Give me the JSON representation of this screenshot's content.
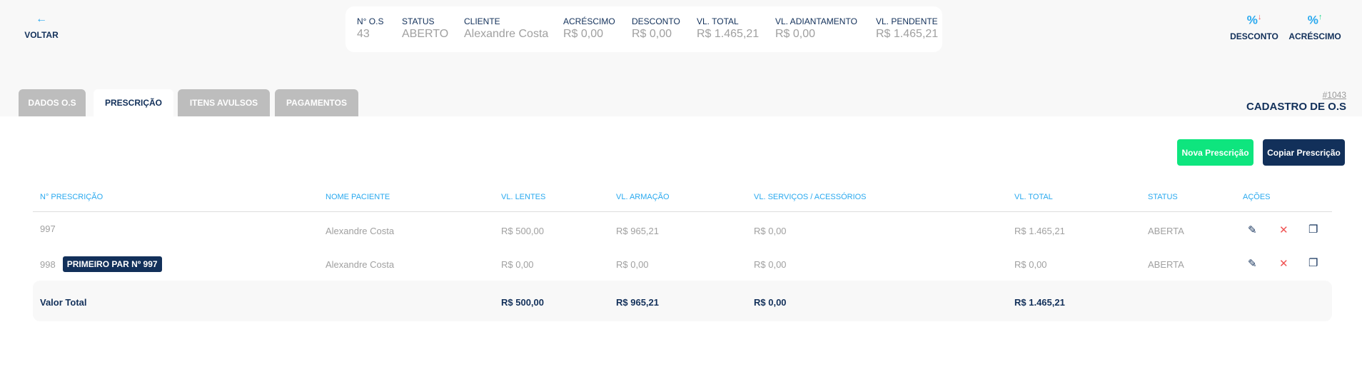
{
  "header": {
    "back_label": "VOLTAR",
    "back_icon": "arrow-left-icon",
    "info": [
      {
        "label": "N° O.S",
        "value": "43"
      },
      {
        "label": "STATUS",
        "value": "ABERTO"
      },
      {
        "label": "CLIENTE",
        "value": "Alexandre Costa"
      },
      {
        "label": "ACRÉSCIMO",
        "value": "R$ 0,00"
      },
      {
        "label": "DESCONTO",
        "value": "R$ 0,00"
      },
      {
        "label": "VL. TOTAL",
        "value": "R$ 1.465,21"
      },
      {
        "label": "VL. ADIANTAMENTO",
        "value": "R$ 0,00"
      },
      {
        "label": "VL. PENDENTE",
        "value": "R$ 1.465,21"
      }
    ],
    "actions": [
      {
        "label": "DESCONTO",
        "icon": "percent-down-icon",
        "arrow": "↓",
        "arrow_color": "#f05454"
      },
      {
        "label": "ACRÉSCIMO",
        "icon": "percent-up-icon",
        "arrow": "↑",
        "arrow_color": "#19d98b"
      }
    ]
  },
  "tabs": [
    {
      "label": "DADOS O.S"
    },
    {
      "label": "PRESCRIÇÃO",
      "active": true
    },
    {
      "label": "ITENS AVULSOS"
    },
    {
      "label": "PAGAMENTOS"
    }
  ],
  "page": {
    "code": "#1043",
    "title": "CADASTRO DE O.S"
  },
  "buttons": {
    "new": "Nova Prescrição",
    "copy": "Copiar Prescrição",
    "new_color": "#0ee57e",
    "copy_color": "#12305a"
  },
  "table": {
    "headers": [
      "N° PRESCRIÇÃO",
      "NOME PACIENTE",
      "VL. LENTES",
      "VL. ARMAÇÃO",
      "VL. SERVIÇOS / ACESSÓRIOS",
      "VL. TOTAL",
      "STATUS",
      "AÇÕES"
    ],
    "rows": [
      {
        "num": "997",
        "badge": "",
        "paciente": "Alexandre Costa",
        "lentes": "R$ 500,00",
        "armacao": "R$ 965,21",
        "servicos": "R$ 0,00",
        "total": "R$ 1.465,21",
        "status": "ABERTA"
      },
      {
        "num": "998",
        "badge": "PRIMEIRO PAR Nº 997",
        "paciente": "Alexandre Costa",
        "lentes": "R$ 0,00",
        "armacao": "R$ 0,00",
        "servicos": "R$ 0,00",
        "total": "R$ 0,00",
        "status": "ABERTA"
      }
    ],
    "totals": {
      "label": "Valor Total",
      "lentes": "R$ 500,00",
      "armacao": "R$ 965,21",
      "servicos": "R$ 0,00",
      "total": "R$ 1.465,21"
    }
  }
}
